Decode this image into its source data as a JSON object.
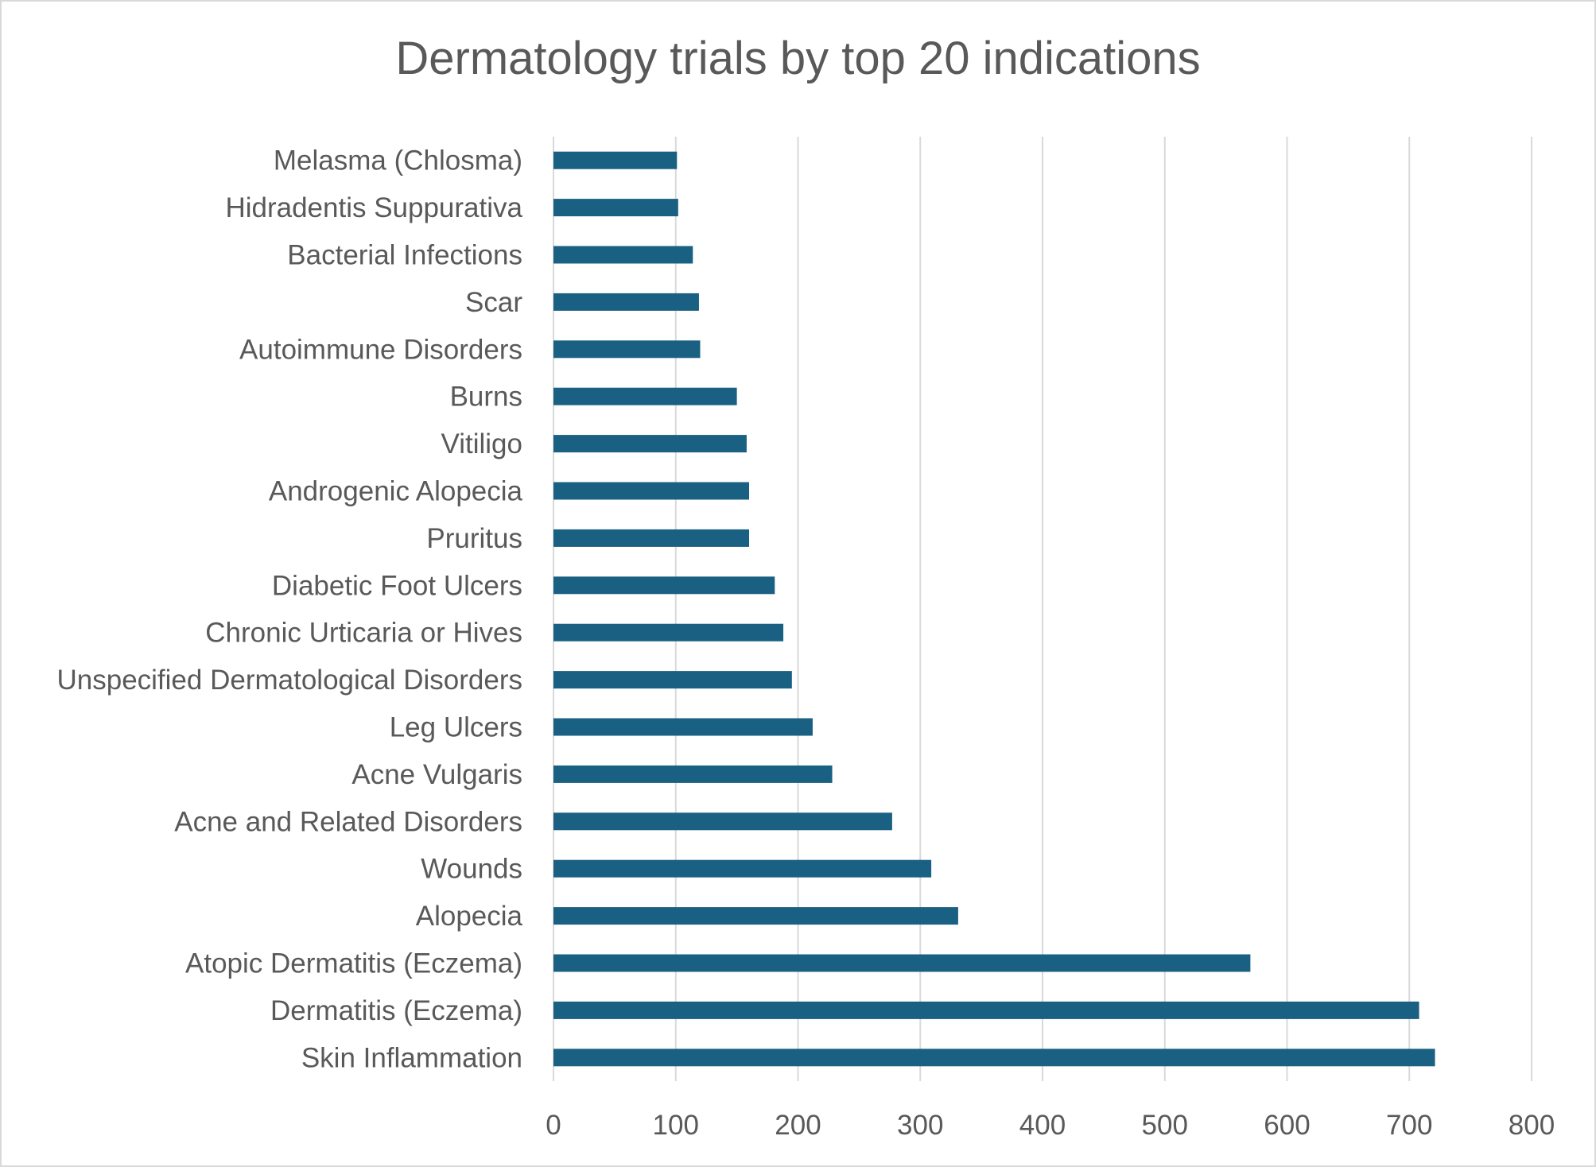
{
  "chart_data": {
    "type": "bar",
    "orientation": "horizontal",
    "title": "Dermatology trials by top 20 indications",
    "xlabel": "",
    "ylabel": "",
    "categories": [
      "Skin Inflammation",
      "Dermatitis (Eczema)",
      "Atopic Dermatitis (Eczema)",
      "Alopecia",
      "Wounds",
      "Acne and Related Disorders",
      "Acne Vulgaris",
      "Leg Ulcers",
      "Unspecified Dermatological Disorders",
      "Chronic Urticaria or Hives",
      "Diabetic Foot Ulcers",
      "Pruritus",
      "Androgenic Alopecia",
      "Vitiligo",
      "Burns",
      "Autoimmune Disorders",
      "Scar",
      "Bacterial Infections",
      "Hidradentis Suppurativa",
      "Melasma (Chlosma)"
    ],
    "values": [
      721,
      708,
      570,
      331,
      309,
      277,
      228,
      212,
      195,
      188,
      181,
      160,
      160,
      158,
      150,
      120,
      119,
      114,
      102,
      101
    ],
    "xlim": [
      0,
      800
    ],
    "xticks": [
      "0",
      "100",
      "200",
      "300",
      "400",
      "500",
      "600",
      "700",
      "800"
    ],
    "xtick_values": [
      0,
      100,
      200,
      300,
      400,
      500,
      600,
      700,
      800
    ],
    "grid": "vertical",
    "legend": "none",
    "bar_color": "#1a6082"
  }
}
